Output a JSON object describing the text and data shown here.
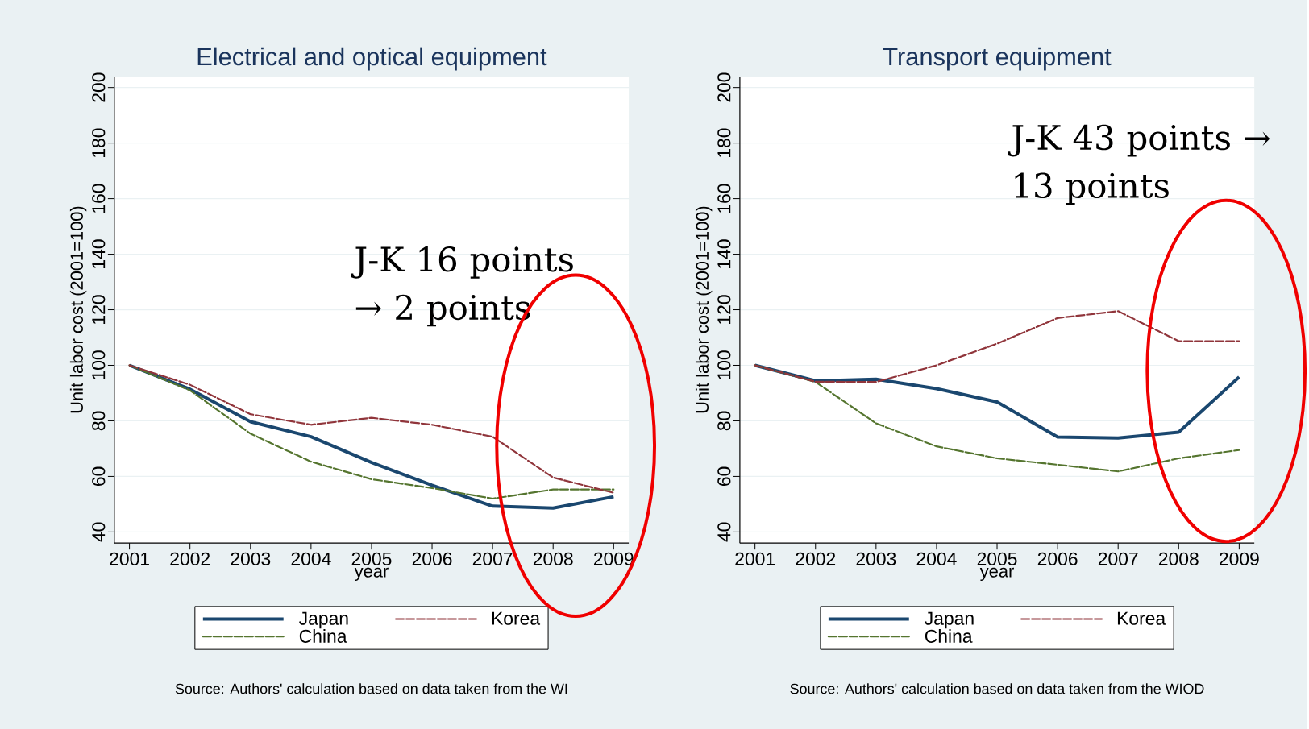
{
  "chart_data": [
    {
      "type": "line",
      "title": "Electrical and optical equipment",
      "xlabel": "year",
      "ylabel": "Unit labor cost (2001=100)",
      "x": [
        2001,
        2002,
        2003,
        2004,
        2005,
        2006,
        2007,
        2008,
        2009
      ],
      "xlim": [
        2000.75,
        2009.25
      ],
      "xticks": [
        2001,
        2002,
        2003,
        2004,
        2005,
        2006,
        2007,
        2008,
        2009
      ],
      "ylim": [
        36,
        204
      ],
      "yticks": [
        40,
        60,
        80,
        100,
        120,
        140,
        160,
        180,
        200
      ],
      "grid": "y",
      "legend": "bottom",
      "series": [
        {
          "name": "Japan",
          "color": "#1a476f",
          "line_style": "solid",
          "values": [
            100,
            91.4,
            79.7,
            74.3,
            65,
            56.8,
            49.3,
            48.6,
            52.7
          ]
        },
        {
          "name": "Korea",
          "color": "#90353b",
          "line_style": "dashed",
          "values": [
            100,
            93,
            82.4,
            78.6,
            81.1,
            78.6,
            74.3,
            59.6,
            54.1
          ]
        },
        {
          "name": "China",
          "color": "#55752f",
          "line_style": "dashed",
          "values": [
            100,
            91,
            75.4,
            65.3,
            59,
            55.8,
            52,
            55.3,
            55.3
          ]
        }
      ],
      "annotations": [
        "J-K  16 points → 2 points",
        "Source: Authors' calculation based on data taken from the WI"
      ]
    },
    {
      "type": "line",
      "title": "Transport equipment",
      "xlabel": "year",
      "ylabel": "Unit labor cost (2001=100)",
      "x": [
        2001,
        2002,
        2003,
        2004,
        2005,
        2006,
        2007,
        2008,
        2009
      ],
      "xlim": [
        2000.75,
        2009.25
      ],
      "xticks": [
        2001,
        2002,
        2003,
        2004,
        2005,
        2006,
        2007,
        2008,
        2009
      ],
      "ylim": [
        36,
        204
      ],
      "yticks": [
        40,
        60,
        80,
        100,
        120,
        140,
        160,
        180,
        200
      ],
      "grid": "y",
      "legend": "bottom",
      "series": [
        {
          "name": "Japan",
          "color": "#1a476f",
          "line_style": "solid",
          "values": [
            100,
            94.4,
            95,
            91.6,
            86.8,
            74.2,
            73.8,
            75.9,
            95.8
          ]
        },
        {
          "name": "Korea",
          "color": "#90353b",
          "line_style": "dashed",
          "values": [
            100,
            94.1,
            94,
            100,
            107.8,
            117,
            119.5,
            108.7,
            108.7
          ]
        },
        {
          "name": "China",
          "color": "#55752f",
          "line_style": "dashed",
          "values": [
            100,
            94,
            79.1,
            70.8,
            66.5,
            64.2,
            61.8,
            66.5,
            69.5
          ]
        }
      ],
      "annotations": [
        "J-K  43 points → 13 points",
        "Source: Authors' calculation based on data taken from the WIOD"
      ]
    }
  ]
}
